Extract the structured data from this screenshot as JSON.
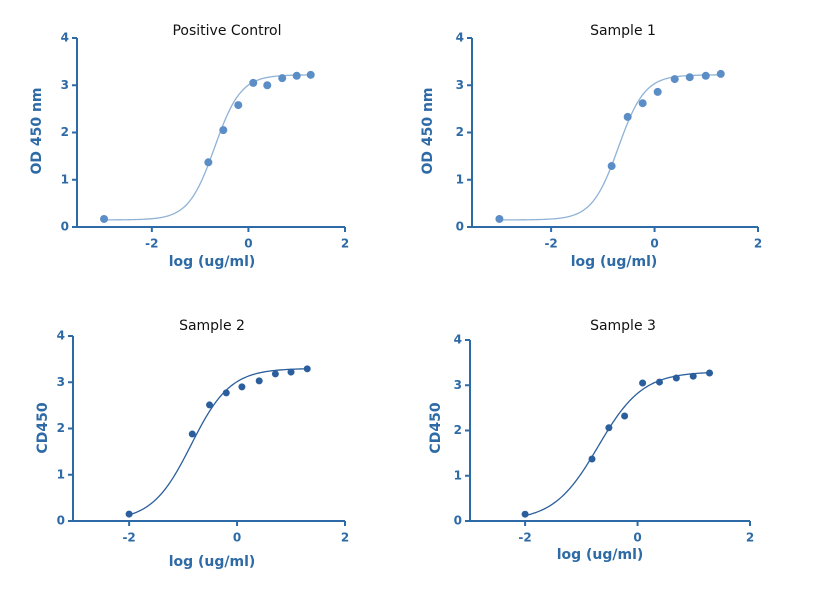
{
  "chart_data": [
    {
      "type": "scatter",
      "title": "Positive Control",
      "x_label": "log (ug/ml)",
      "y_label": "OD 450 nm",
      "x": [
        -2.99,
        -0.83,
        -0.52,
        -0.21,
        0.1,
        0.39,
        0.7,
        1.0,
        1.29
      ],
      "values": [
        0.17,
        1.37,
        2.05,
        2.58,
        3.05,
        3.0,
        3.15,
        3.2,
        3.22
      ],
      "fit": {
        "bottom": 0.15,
        "top": 3.22,
        "logEC50": -0.7,
        "hill": 1.6
      },
      "xlim": [
        -3.55,
        2
      ],
      "ylim": [
        0,
        4
      ],
      "xticks": [
        -2,
        0,
        2
      ],
      "yticks": [
        0,
        1,
        2,
        3,
        4
      ],
      "point_color": "#5b8ec6",
      "curve_color": "#8fb2d6",
      "axis_color": "#2e6aa6"
    },
    {
      "type": "scatter",
      "title": "Sample 1",
      "x_label": "log (ug/ml)",
      "y_label": "OD 450 nm",
      "x": [
        -3.0,
        -0.83,
        -0.52,
        -0.23,
        0.06,
        0.39,
        0.68,
        0.99,
        1.28
      ],
      "values": [
        0.17,
        1.29,
        2.33,
        2.62,
        2.86,
        3.13,
        3.17,
        3.2,
        3.24
      ],
      "fit": {
        "bottom": 0.15,
        "top": 3.22,
        "logEC50": -0.7,
        "hill": 1.7
      },
      "xlim": [
        -3.53,
        2
      ],
      "ylim": [
        0,
        4
      ],
      "xticks": [
        -2,
        0,
        2
      ],
      "yticks": [
        0,
        1,
        2,
        3,
        4
      ],
      "point_color": "#5b8ec6",
      "curve_color": "#8fb2d6",
      "axis_color": "#2e6aa6"
    },
    {
      "type": "scatter",
      "title": "Sample 2",
      "x_label": "log (ug/ml)",
      "y_label": "CD450",
      "x": [
        -2.0,
        -0.83,
        -0.51,
        -0.2,
        0.09,
        0.41,
        0.71,
        1.0,
        1.3
      ],
      "values": [
        0.15,
        1.88,
        2.51,
        2.77,
        2.9,
        3.03,
        3.18,
        3.22,
        3.29
      ],
      "fit": {
        "bottom": 0,
        "top": 3.3,
        "logEC50": -0.85,
        "hill": 1.2
      },
      "xlim": [
        -3.04,
        2
      ],
      "ylim": [
        0,
        4
      ],
      "xticks": [
        -2,
        0,
        2
      ],
      "yticks": [
        0,
        1,
        2,
        3,
        4
      ],
      "point_color": "#2a5e9c",
      "curve_color": "#2a5e9c",
      "axis_color": "#2e6aa6"
    },
    {
      "type": "scatter",
      "title": "Sample 3",
      "x_label": "log (ug/ml)",
      "y_label": "CD450",
      "x": [
        -2.0,
        -0.81,
        -0.51,
        -0.23,
        0.09,
        0.39,
        0.69,
        0.99,
        1.28
      ],
      "values": [
        0.15,
        1.37,
        2.06,
        2.32,
        3.05,
        3.07,
        3.16,
        3.2,
        3.27
      ],
      "fit": {
        "bottom": 0,
        "top": 3.3,
        "logEC50": -0.7,
        "hill": 1.1
      },
      "xlim": [
        -2.98,
        2
      ],
      "ylim": [
        0,
        4
      ],
      "xticks": [
        -2,
        0,
        2
      ],
      "yticks": [
        0,
        1,
        2,
        3,
        4
      ],
      "point_color": "#2a5e9c",
      "curve_color": "#2a5e9c",
      "axis_color": "#2e6aa6"
    }
  ]
}
